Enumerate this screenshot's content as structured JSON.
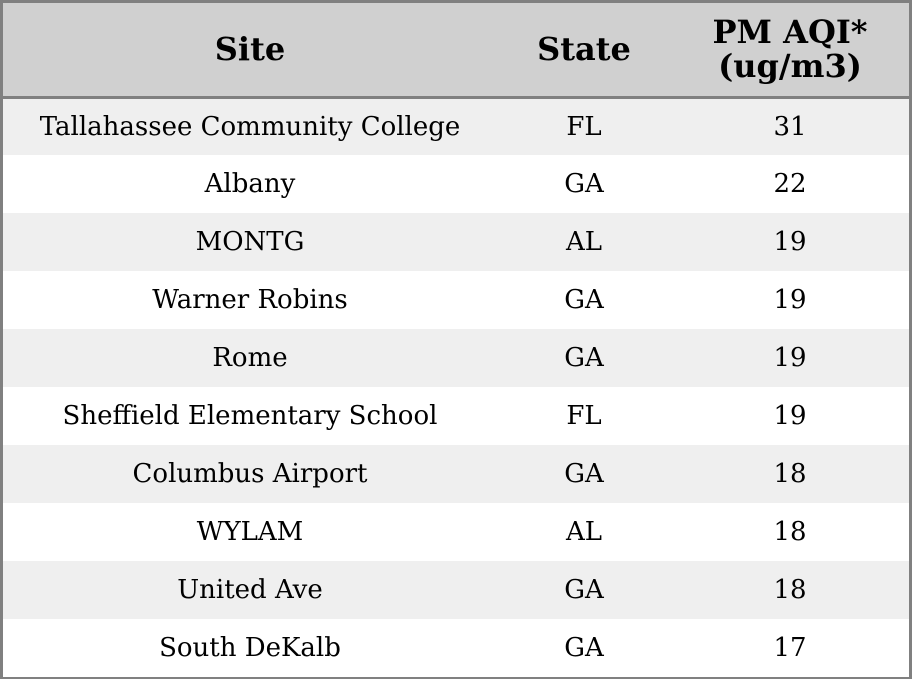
{
  "table": {
    "headers": {
      "site": "Site",
      "state": "State",
      "aqi_line1": "PM AQI*",
      "aqi_line2": "(ug/m3)"
    },
    "rows": [
      {
        "site": "Tallahassee Community College",
        "state": "FL",
        "aqi": "31"
      },
      {
        "site": "Albany",
        "state": "GA",
        "aqi": "22"
      },
      {
        "site": "MONTG",
        "state": "AL",
        "aqi": "19"
      },
      {
        "site": "Warner Robins",
        "state": "GA",
        "aqi": "19"
      },
      {
        "site": "Rome",
        "state": "GA",
        "aqi": "19"
      },
      {
        "site": "Sheffield Elementary School",
        "state": "FL",
        "aqi": "19"
      },
      {
        "site": "Columbus Airport",
        "state": "GA",
        "aqi": "18"
      },
      {
        "site": "WYLAM",
        "state": "AL",
        "aqi": "18"
      },
      {
        "site": "United Ave",
        "state": "GA",
        "aqi": "18"
      },
      {
        "site": "South DeKalb",
        "state": "GA",
        "aqi": "17"
      }
    ]
  },
  "colors": {
    "header_bg": "#d0d0d0",
    "row_alt_bg": "#efefef",
    "row_bg": "#ffffff",
    "border": "#808080"
  }
}
